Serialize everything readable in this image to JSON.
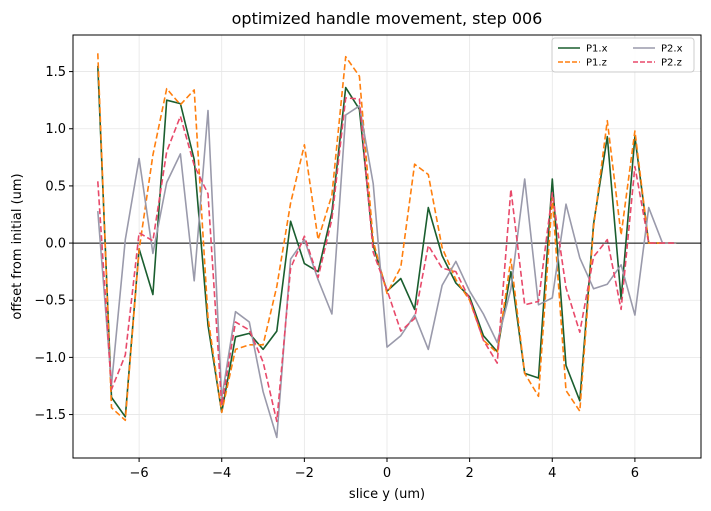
{
  "chart_data": {
    "type": "line",
    "title": "optimized handle movement, step 006",
    "xlabel": "slice y (um)",
    "ylabel": "offset from initial (um)",
    "xlim": [
      -7.6,
      7.6
    ],
    "ylim": [
      -1.88,
      1.82
    ],
    "xticks": [
      -6,
      -4,
      -2,
      0,
      2,
      4,
      6
    ],
    "xtick_labels": [
      "−6",
      "−4",
      "−2",
      "0",
      "2",
      "4",
      "6"
    ],
    "yticks": [
      -1.5,
      -1.0,
      -0.5,
      0.0,
      0.5,
      1.0,
      1.5
    ],
    "ytick_labels": [
      "−1.5",
      "−1.0",
      "−0.5",
      "0.0",
      "0.5",
      "1.0",
      "1.5"
    ],
    "grid": true,
    "reference_line_y": 0,
    "legend_position": "top-right",
    "x": [
      -7.0,
      -6.667,
      -6.333,
      -6.0,
      -5.667,
      -5.333,
      -5.0,
      -4.667,
      -4.333,
      -4.0,
      -3.667,
      -3.333,
      -3.0,
      -2.667,
      -2.333,
      -2.0,
      -1.667,
      -1.333,
      -1.0,
      -0.667,
      -0.333,
      0.0,
      0.333,
      0.667,
      1.0,
      1.333,
      1.667,
      2.0,
      2.333,
      2.667,
      3.0,
      3.333,
      3.667,
      4.0,
      4.333,
      4.667,
      5.0,
      5.333,
      5.667,
      6.0,
      6.333,
      6.667,
      7.0
    ],
    "series": [
      {
        "name": "P1.x",
        "color": "#1a5e2f",
        "dash": "solid",
        "values": [
          1.55,
          -1.35,
          -1.52,
          -0.05,
          -0.45,
          1.25,
          1.22,
          0.73,
          -0.72,
          -1.48,
          -0.82,
          -0.79,
          -0.93,
          -0.77,
          0.19,
          -0.18,
          -0.25,
          0.27,
          1.36,
          1.17,
          -0.02,
          -0.42,
          -0.31,
          -0.58,
          0.31,
          -0.11,
          -0.35,
          -0.47,
          -0.81,
          -0.95,
          -0.25,
          -1.14,
          -1.18,
          0.56,
          -1.07,
          -1.38,
          0.17,
          0.93,
          -0.49,
          0.93,
          0,
          0,
          0
        ]
      },
      {
        "name": "P1.z",
        "color": "#ff7f0e",
        "dash": "6,3",
        "values": [
          1.66,
          -1.44,
          -1.55,
          -0.06,
          0.77,
          1.35,
          1.21,
          1.34,
          -0.65,
          -1.48,
          -0.93,
          -0.89,
          -0.89,
          -0.38,
          0.35,
          0.86,
          0.03,
          0.42,
          1.63,
          1.46,
          0.02,
          -0.44,
          -0.21,
          0.69,
          0.6,
          -0.04,
          -0.32,
          -0.5,
          -0.85,
          -0.96,
          -0.14,
          -1.14,
          -1.34,
          0.4,
          -1.29,
          -1.47,
          0.14,
          1.07,
          0.07,
          0.98,
          0,
          0,
          0
        ]
      },
      {
        "name": "P2.x",
        "color": "#9a9aab",
        "dash": "solid",
        "values": [
          0.28,
          -1.24,
          0.03,
          0.74,
          -0.09,
          0.53,
          0.78,
          -0.33,
          1.16,
          -1.36,
          -0.6,
          -0.69,
          -1.3,
          -1.7,
          -0.14,
          0.03,
          -0.32,
          -0.62,
          1.12,
          1.2,
          0.52,
          -0.91,
          -0.81,
          -0.63,
          -0.93,
          -0.37,
          -0.16,
          -0.42,
          -0.62,
          -0.87,
          -0.4,
          0.56,
          -0.54,
          -0.48,
          0.34,
          -0.13,
          -0.4,
          -0.36,
          -0.19,
          -0.63,
          0.31,
          0,
          0
        ]
      },
      {
        "name": "P2.z",
        "color": "#e8496a",
        "dash": "6,3",
        "values": [
          0.54,
          -1.28,
          -0.98,
          0.09,
          0.02,
          0.8,
          1.11,
          0.68,
          0.43,
          -1.42,
          -0.69,
          -0.76,
          -1.04,
          -1.56,
          -0.22,
          0.06,
          -0.3,
          0.21,
          1.27,
          1.26,
          -0.08,
          -0.41,
          -0.77,
          -0.66,
          -0.02,
          -0.22,
          -0.25,
          -0.49,
          -0.85,
          -1.05,
          0.47,
          -0.54,
          -0.51,
          0.44,
          -0.39,
          -0.78,
          -0.12,
          0.03,
          -0.58,
          0.67,
          0,
          0,
          0
        ]
      }
    ]
  }
}
